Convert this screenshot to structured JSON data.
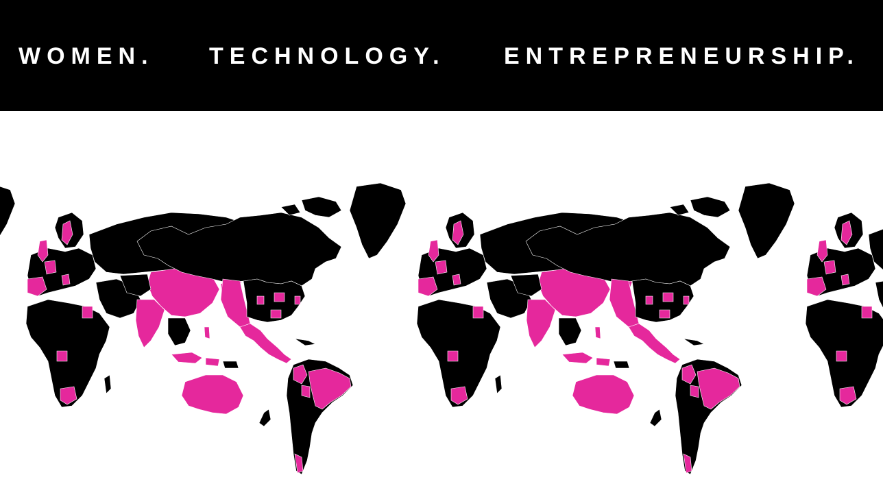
{
  "banner": {
    "words": [
      "WOMEN.",
      "TECHNOLOGY.",
      "ENTREPRENEURSHIP."
    ],
    "background": "#000000",
    "text_color": "#ffffff"
  },
  "map": {
    "land_color": "#000000",
    "highlight_color": "#e5289c",
    "repeat_count": 3
  }
}
